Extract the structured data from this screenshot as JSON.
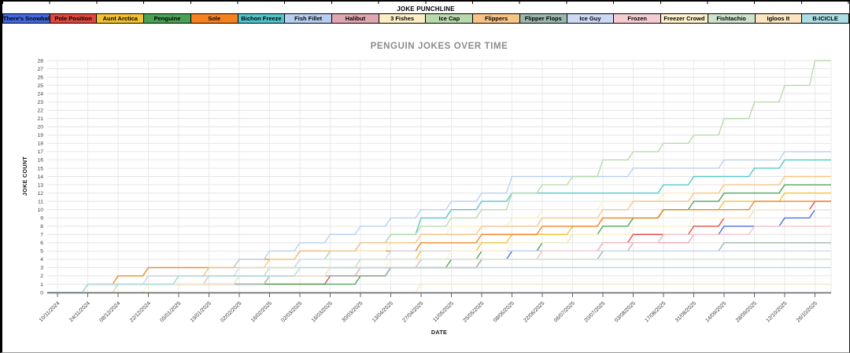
{
  "table": {
    "header": "JOKE PUNCHLINE"
  },
  "chart_data": {
    "type": "line",
    "title": "PENGUIN JOKES OVER TIME",
    "xlabel": "DATE",
    "ylabel": "JOKE COUNT",
    "ylim": [
      0,
      28
    ],
    "y_tick_step": 1,
    "grid": true,
    "legend_position": "top-table",
    "line_style": "cumulative-step",
    "x_tick_labels": [
      "10/11/2024",
      "24/11/2024",
      "08/12/2024",
      "22/12/2024",
      "05/01/2025",
      "19/01/2025",
      "02/02/2025",
      "16/02/2025",
      "02/03/2025",
      "16/03/2025",
      "30/03/2025",
      "13/04/2025",
      "27/04/2025",
      "11/05/2025",
      "25/05/2025",
      "08/06/2025",
      "22/06/2025",
      "06/07/2025",
      "20/07/2025",
      "03/08/2025",
      "17/08/2025",
      "31/08/2025",
      "14/09/2025",
      "28/09/2025",
      "12/10/2025",
      "26/10/2025"
    ],
    "series": [
      {
        "name": "There's Snowbal",
        "color": "#4169e1",
        "values": [
          0,
          1,
          1,
          1,
          1,
          1,
          2,
          2,
          2,
          3,
          3,
          3,
          4,
          4,
          4,
          5,
          5,
          5,
          6,
          6,
          7,
          7,
          8,
          8,
          9,
          10
        ]
      },
      {
        "name": "Pole Position",
        "color": "#e0483e",
        "values": [
          0,
          1,
          1,
          1,
          1,
          1,
          1,
          1,
          1,
          2,
          2,
          3,
          3,
          3,
          4,
          4,
          5,
          5,
          6,
          7,
          7,
          8,
          9,
          10,
          10,
          11
        ]
      },
      {
        "name": "Aunt Arctica",
        "color": "#f1c232",
        "values": [
          0,
          1,
          1,
          1,
          2,
          2,
          2,
          3,
          3,
          3,
          4,
          4,
          5,
          5,
          6,
          7,
          7,
          8,
          9,
          9,
          10,
          10,
          11,
          11,
          12,
          12
        ]
      },
      {
        "name": "Penguine",
        "color": "#4aa154",
        "values": [
          0,
          1,
          1,
          1,
          1,
          1,
          1,
          1,
          1,
          1,
          2,
          3,
          3,
          4,
          5,
          5,
          6,
          7,
          8,
          9,
          10,
          11,
          12,
          12,
          13,
          13
        ]
      },
      {
        "name": "Sole",
        "color": "#f6821f",
        "values": [
          0,
          1,
          2,
          3,
          3,
          3,
          4,
          4,
          5,
          5,
          5,
          5,
          6,
          6,
          7,
          7,
          8,
          8,
          9,
          9,
          10,
          10,
          10,
          11,
          11,
          11
        ]
      },
      {
        "name": "Bichon Freeze",
        "color": "#50c4ca",
        "values": [
          0,
          1,
          1,
          1,
          1,
          2,
          2,
          3,
          4,
          5,
          6,
          7,
          9,
          10,
          11,
          12,
          12,
          12,
          12,
          12,
          13,
          14,
          14,
          15,
          16,
          16
        ]
      },
      {
        "name": "Fish Fillet",
        "color": "#b7cdf1",
        "values": [
          0,
          1,
          1,
          2,
          2,
          3,
          4,
          5,
          6,
          7,
          8,
          9,
          10,
          11,
          12,
          14,
          14,
          14,
          14,
          15,
          15,
          15,
          16,
          16,
          17,
          17
        ]
      },
      {
        "name": "Halibut",
        "color": "#dfa7b0",
        "values": [
          0,
          0,
          1,
          1,
          1,
          1,
          1,
          2,
          2,
          2,
          3,
          3,
          3,
          3,
          4,
          4,
          5,
          5,
          5,
          6,
          6,
          7,
          7,
          8,
          8,
          8
        ]
      },
      {
        "name": "3 Fishes",
        "color": "#fbeec5",
        "values": [
          0,
          0,
          1,
          1,
          2,
          2,
          3,
          3,
          4,
          5,
          5,
          6,
          7,
          8,
          8,
          9,
          10,
          10,
          11,
          11,
          12,
          12,
          13,
          13,
          14,
          14
        ]
      },
      {
        "name": "Ice Cap",
        "color": "#b7d9ab",
        "values": [
          0,
          1,
          1,
          1,
          1,
          2,
          2,
          3,
          4,
          5,
          6,
          7,
          8,
          9,
          10,
          12,
          13,
          14,
          16,
          17,
          18,
          19,
          21,
          23,
          25,
          28
        ]
      },
      {
        "name": "Flippers",
        "color": "#f7c386",
        "values": [
          0,
          1,
          1,
          2,
          2,
          3,
          3,
          4,
          5,
          5,
          6,
          6,
          7,
          7,
          8,
          8,
          9,
          9,
          10,
          11,
          11,
          12,
          13,
          13,
          14,
          14
        ]
      },
      {
        "name": "Flipper Flops",
        "color": "#9cb8ad",
        "values": [
          0,
          0,
          1,
          1,
          1,
          1,
          1,
          2,
          2,
          2,
          2,
          3,
          3,
          3,
          4,
          4,
          4,
          4,
          5,
          5,
          5,
          5,
          6,
          6,
          6,
          6
        ]
      },
      {
        "name": "Ice Guy",
        "color": "#ccd9f5",
        "values": [
          0,
          1,
          1,
          2,
          2,
          2,
          3,
          3,
          4,
          4,
          4,
          5,
          5,
          5,
          5,
          5,
          5,
          5,
          5,
          5,
          5,
          5,
          5,
          5,
          5,
          5
        ]
      },
      {
        "name": "Frozen",
        "color": "#f5ccd2",
        "values": [
          0,
          1,
          1,
          1,
          1,
          2,
          2,
          2,
          2,
          3,
          3,
          3,
          4,
          4,
          4,
          4,
          5,
          5,
          6,
          6,
          7,
          7,
          7,
          8,
          8,
          8
        ]
      },
      {
        "name": "Freezer Crowd",
        "color": "#fdf2cc",
        "values": [
          0,
          0,
          0,
          1,
          1,
          1,
          2,
          2,
          2,
          3,
          3,
          4,
          4,
          5,
          5,
          6,
          6,
          7,
          7,
          8,
          8,
          9,
          9,
          10,
          10,
          10
        ]
      },
      {
        "name": "Fishtachio",
        "color": "#cfe3cc",
        "values": [
          0,
          0,
          1,
          1,
          2,
          2,
          2,
          3,
          3,
          3,
          4,
          4,
          4,
          4,
          4,
          4,
          4,
          4,
          4,
          4,
          4,
          4,
          4,
          4,
          4,
          4
        ]
      },
      {
        "name": "Igloos It",
        "color": "#fbe5c0",
        "values": [
          0,
          0,
          0,
          0,
          0,
          0,
          0,
          0,
          0,
          0,
          0,
          0,
          1,
          1,
          1,
          1,
          1,
          1,
          1,
          1,
          1,
          1,
          1,
          1,
          1,
          1
        ]
      },
      {
        "name": "B-ICICLE",
        "color": "#aadde4",
        "values": [
          0,
          1,
          1,
          1,
          2,
          2,
          2,
          2,
          3,
          3,
          3,
          3,
          3,
          3,
          3,
          3,
          3,
          3,
          3,
          3,
          3,
          3,
          3,
          3,
          3,
          3
        ]
      }
    ]
  }
}
